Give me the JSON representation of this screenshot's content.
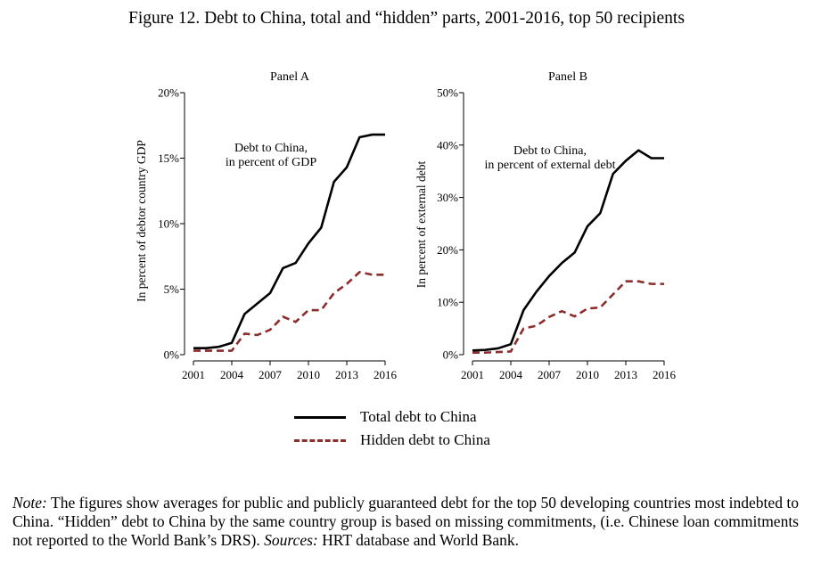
{
  "figure": {
    "title": "Figure 12. Debt to China, total and “hidden” parts, 2001-2016, top 50 recipients"
  },
  "legend": {
    "total_label": "Total debt to China",
    "hidden_label": "Hidden debt to China"
  },
  "colors": {
    "total": "#000000",
    "hidden": "#8b2d2d"
  },
  "note": {
    "label": "Note:",
    "text": " The figures show averages for public and publicly guaranteed debt for the top 50 developing countries most indebted to China. “Hidden” debt to China by the same country group is based on missing commitments, (i.e. Chinese loan commitments not reported to the World Bank’s DRS). ",
    "sources_label": "Sources:",
    "sources_text": " HRT database and World Bank."
  },
  "chart_data": [
    {
      "type": "line",
      "panel_title": "Panel A",
      "annotation": [
        "Debt to China,",
        "in percent of GDP"
      ],
      "ylabel": "In percent of debtor country GDP",
      "xlabel": "",
      "ylim": [
        0,
        20
      ],
      "yticks": [
        0,
        5,
        10,
        15,
        20
      ],
      "ytick_labels": [
        "0%",
        "5%",
        "10%",
        "15%",
        "20%"
      ],
      "xlim": [
        2001,
        2016
      ],
      "xticks": [
        2001,
        2004,
        2007,
        2010,
        2013,
        2016
      ],
      "xtick_labels": [
        "2001",
        "2004",
        "2007",
        "2010",
        "2013",
        "2016"
      ],
      "x": [
        2001,
        2002,
        2003,
        2004,
        2005,
        2006,
        2007,
        2008,
        2009,
        2010,
        2011,
        2012,
        2013,
        2014,
        2015,
        2016
      ],
      "series": [
        {
          "name": "Total debt to China",
          "style": "solid",
          "values": [
            0.5,
            0.5,
            0.6,
            0.9,
            3.1,
            3.9,
            4.7,
            6.6,
            7.0,
            8.5,
            9.7,
            13.2,
            14.3,
            16.6,
            16.8,
            16.8
          ]
        },
        {
          "name": "Hidden debt to China",
          "style": "dashed",
          "values": [
            0.3,
            0.3,
            0.3,
            0.3,
            1.6,
            1.5,
            1.9,
            2.9,
            2.5,
            3.4,
            3.4,
            4.7,
            5.4,
            6.3,
            6.1,
            6.1
          ]
        }
      ]
    },
    {
      "type": "line",
      "panel_title": "Panel B",
      "annotation": [
        "Debt to China,",
        "in percent of external debt"
      ],
      "ylabel": "In percent of external debt",
      "xlabel": "",
      "ylim": [
        0,
        50
      ],
      "yticks": [
        0,
        10,
        20,
        30,
        40,
        50
      ],
      "ytick_labels": [
        "0%",
        "10%",
        "20%",
        "30%",
        "40%",
        "50%"
      ],
      "xlim": [
        2001,
        2016
      ],
      "xticks": [
        2001,
        2004,
        2007,
        2010,
        2013,
        2016
      ],
      "xtick_labels": [
        "2001",
        "2004",
        "2007",
        "2010",
        "2013",
        "2016"
      ],
      "x": [
        2001,
        2002,
        2003,
        2004,
        2005,
        2006,
        2007,
        2008,
        2009,
        2010,
        2011,
        2012,
        2013,
        2014,
        2015,
        2016
      ],
      "series": [
        {
          "name": "Total debt to China",
          "style": "solid",
          "values": [
            0.8,
            0.9,
            1.2,
            2.0,
            8.5,
            12.0,
            15.0,
            17.5,
            19.5,
            24.5,
            27.0,
            34.5,
            37.0,
            39.0,
            37.5,
            37.5
          ]
        },
        {
          "name": "Hidden debt to China",
          "style": "dashed",
          "values": [
            0.4,
            0.4,
            0.5,
            0.6,
            5.0,
            5.5,
            7.2,
            8.3,
            7.3,
            8.8,
            9.0,
            11.5,
            14.0,
            14.0,
            13.5,
            13.5
          ]
        }
      ]
    }
  ]
}
